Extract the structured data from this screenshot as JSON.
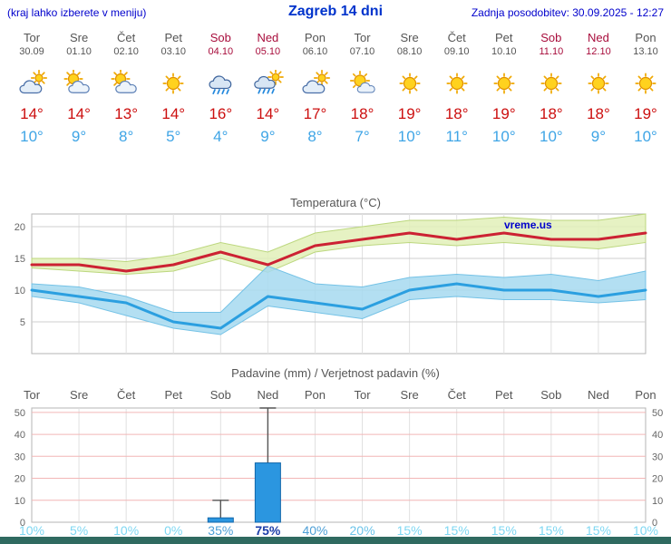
{
  "header": {
    "hint": "(kraj lahko izberete v meniju)",
    "title": "Zagreb 14 dni",
    "updated": "Zadnja posodobitev: 30.09.2025 - 12:27"
  },
  "theme": {
    "link_blue": "#0000cc",
    "title_blue": "#0033cc",
    "weekday_color": "#555555",
    "weekend_color": "#a80d3c",
    "tmax_color": "#cc0f0f",
    "tmin_color": "#3fa5e6",
    "chart_title_color": "#555555",
    "footer_bar_color": "#2f6a60"
  },
  "days": [
    {
      "name": "Tor",
      "date": "30.09",
      "weekend": false,
      "icon": "cloudy",
      "tmax": "14°",
      "tmin": "10°",
      "prob": "10%",
      "prob_color": "#7ed7f2",
      "prob_bold": false
    },
    {
      "name": "Sre",
      "date": "01.10",
      "weekend": false,
      "icon": "partly",
      "tmax": "14°",
      "tmin": "9°",
      "prob": "5%",
      "prob_color": "#7ed7f2",
      "prob_bold": false
    },
    {
      "name": "Čet",
      "date": "02.10",
      "weekend": false,
      "icon": "partly",
      "tmax": "13°",
      "tmin": "8°",
      "prob": "10%",
      "prob_color": "#7ed7f2",
      "prob_bold": false
    },
    {
      "name": "Pet",
      "date": "03.10",
      "weekend": false,
      "icon": "sunny",
      "tmax": "14°",
      "tmin": "5°",
      "prob": "0%",
      "prob_color": "#7ed7f2",
      "prob_bold": false
    },
    {
      "name": "Sob",
      "date": "04.10",
      "weekend": true,
      "icon": "rain",
      "tmax": "16°",
      "tmin": "4°",
      "prob": "35%",
      "prob_color": "#4d9fd6",
      "prob_bold": false
    },
    {
      "name": "Ned",
      "date": "05.10",
      "weekend": true,
      "icon": "rain-sun",
      "tmax": "14°",
      "tmin": "9°",
      "prob": "75%",
      "prob_color": "#1c3ea8",
      "prob_bold": true
    },
    {
      "name": "Pon",
      "date": "06.10",
      "weekend": false,
      "icon": "cloudy",
      "tmax": "17°",
      "tmin": "8°",
      "prob": "40%",
      "prob_color": "#4d9fd6",
      "prob_bold": false
    },
    {
      "name": "Tor",
      "date": "07.10",
      "weekend": false,
      "icon": "mostly-sunny",
      "tmax": "18°",
      "tmin": "7°",
      "prob": "20%",
      "prob_color": "#6cc4ea",
      "prob_bold": false
    },
    {
      "name": "Sre",
      "date": "08.10",
      "weekend": false,
      "icon": "sunny",
      "tmax": "19°",
      "tmin": "10°",
      "prob": "15%",
      "prob_color": "#7ed7f2",
      "prob_bold": false
    },
    {
      "name": "Čet",
      "date": "09.10",
      "weekend": false,
      "icon": "sunny",
      "tmax": "18°",
      "tmin": "11°",
      "prob": "15%",
      "prob_color": "#7ed7f2",
      "prob_bold": false
    },
    {
      "name": "Pet",
      "date": "10.10",
      "weekend": false,
      "icon": "sunny",
      "tmax": "19°",
      "tmin": "10°",
      "prob": "15%",
      "prob_color": "#7ed7f2",
      "prob_bold": false
    },
    {
      "name": "Sob",
      "date": "11.10",
      "weekend": true,
      "icon": "sunny",
      "tmax": "18°",
      "tmin": "10°",
      "prob": "15%",
      "prob_color": "#7ed7f2",
      "prob_bold": false
    },
    {
      "name": "Ned",
      "date": "12.10",
      "weekend": true,
      "icon": "sunny",
      "tmax": "18°",
      "tmin": "9°",
      "prob": "15%",
      "prob_color": "#7ed7f2",
      "prob_bold": false
    },
    {
      "name": "Pon",
      "date": "13.10",
      "weekend": false,
      "icon": "sunny",
      "tmax": "19°",
      "tmin": "10°",
      "prob": "10%",
      "prob_color": "#7ed7f2",
      "prob_bold": false
    }
  ],
  "temp_chart": {
    "band_max": "#e2f0b8",
    "band_max_edge": "#bcd77e",
    "band_min": "#a6d9f0",
    "band_min_edge": "#74c2e6"
  },
  "precip_chart": {
    "bar_color": "#2b96e0",
    "bar_border": "#1166aa",
    "grid_color": "#f2b6b6"
  },
  "chart_data": [
    {
      "type": "line",
      "title": "Temperatura (°C)",
      "watermark": "vreme.us",
      "x_labels": [
        "Tor 30.09",
        "Sre 01.10",
        "Čet 02.10",
        "Pet 03.10",
        "Sob 04.10",
        "Ned 05.10",
        "Pon 06.10",
        "Tor 07.10",
        "Sre 08.10",
        "Čet 09.10",
        "Pet 10.10",
        "Sob 11.10",
        "Ned 12.10",
        "Pon 13.10"
      ],
      "ylim": [
        0,
        22
      ],
      "yticks": [
        5,
        10,
        15,
        20
      ],
      "series": [
        {
          "name": "max-temperature",
          "color": "#cc2233",
          "values": [
            14,
            14,
            13,
            14,
            16,
            14,
            17,
            18,
            19,
            18,
            19,
            18,
            18,
            19
          ]
        },
        {
          "name": "min-temperature",
          "color": "#2b9fe0",
          "values": [
            10,
            9,
            8,
            5,
            4,
            9,
            8,
            7,
            10,
            11,
            10,
            10,
            9,
            10
          ]
        }
      ],
      "band_max": {
        "upper": [
          15,
          15,
          14.5,
          15.5,
          17.5,
          16,
          19,
          20,
          21,
          21,
          21.5,
          21,
          21,
          22
        ],
        "lower": [
          13.5,
          13,
          12.5,
          13,
          15,
          12.8,
          16,
          17,
          17.5,
          17,
          17.5,
          17,
          16.5,
          17.5
        ]
      },
      "band_min": {
        "upper": [
          11,
          10.5,
          9,
          6.5,
          6.5,
          13.8,
          11,
          10.5,
          12,
          12.5,
          12,
          12.5,
          11.5,
          13
        ],
        "lower": [
          9,
          8,
          6,
          4,
          3,
          7.5,
          6.5,
          5.5,
          8.5,
          9,
          8.5,
          8.5,
          8,
          8.5
        ]
      }
    },
    {
      "type": "bar",
      "title": "Padavine (mm) / Verjetnost padavin (%)",
      "categories": [
        "Tor",
        "Sre",
        "Čet",
        "Pet",
        "Sob",
        "Ned",
        "Pon",
        "Tor",
        "Sre",
        "Čet",
        "Pet",
        "Sob",
        "Ned",
        "Pon"
      ],
      "precip_mm": [
        0,
        0,
        0,
        0,
        2,
        27,
        0,
        0,
        0,
        0,
        0,
        0,
        0,
        0
      ],
      "precip_max_mm": [
        0,
        0,
        0,
        0,
        10,
        52,
        0,
        0,
        0,
        0,
        0,
        0,
        0,
        0
      ],
      "probability_pct": [
        10,
        5,
        10,
        0,
        35,
        75,
        40,
        20,
        15,
        15,
        15,
        15,
        15,
        10
      ],
      "ylim": [
        0,
        52
      ],
      "yticks": [
        0,
        10,
        20,
        30,
        40,
        50
      ]
    }
  ]
}
